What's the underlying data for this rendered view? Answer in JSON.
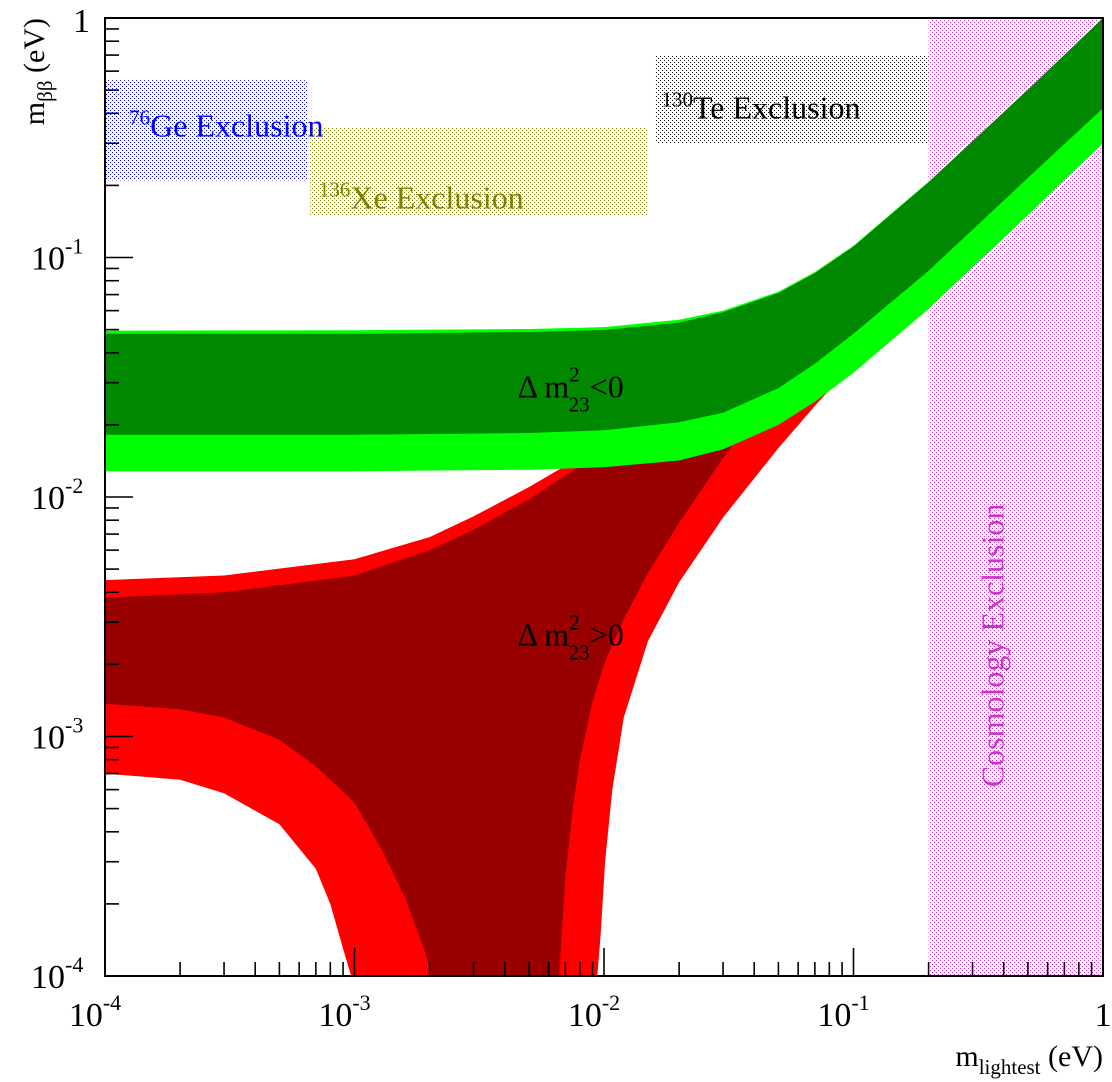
{
  "chart_data": {
    "type": "area",
    "title": "",
    "xlabel": {
      "main": "m",
      "sub": "lightest",
      "unit": " (eV)"
    },
    "ylabel": {
      "main": "m",
      "sub": "ββ",
      "unit": " (eV)"
    },
    "x_scale": "log",
    "y_scale": "log",
    "xlim": [
      0.0001,
      1
    ],
    "ylim": [
      0.0001,
      1
    ],
    "grid": false,
    "x_ticks": [
      {
        "value": 0.0001,
        "base": "10",
        "exp": "-4"
      },
      {
        "value": 0.001,
        "base": "10",
        "exp": "-3"
      },
      {
        "value": 0.01,
        "base": "10",
        "exp": "-2"
      },
      {
        "value": 0.1,
        "base": "10",
        "exp": "-1"
      },
      {
        "value": 1,
        "base": "1",
        "exp": ""
      }
    ],
    "y_ticks": [
      {
        "value": 0.0001,
        "base": "10",
        "exp": "-4"
      },
      {
        "value": 0.001,
        "base": "10",
        "exp": "-3"
      },
      {
        "value": 0.01,
        "base": "10",
        "exp": "-2"
      },
      {
        "value": 0.1,
        "base": "10",
        "exp": "-1"
      },
      {
        "value": 1,
        "base": "1",
        "exp": ""
      }
    ],
    "bands": [
      {
        "label": {
          "pre": "Δ m",
          "sup": "2",
          "sub": "23",
          "post": ">0"
        },
        "label_at": [
          0.0045,
          0.0024
        ],
        "outer_color": "#ff0000",
        "inner_color": "#990000",
        "outer_upper": [
          [
            0.0001,
            0.0045
          ],
          [
            0.0003,
            0.0047
          ],
          [
            0.001,
            0.0055
          ],
          [
            0.002,
            0.0068
          ],
          [
            0.003,
            0.0083
          ],
          [
            0.005,
            0.011
          ],
          [
            0.007,
            0.0135
          ],
          [
            0.01,
            0.017
          ],
          [
            0.015,
            0.021
          ],
          [
            0.02,
            0.025
          ],
          [
            0.03,
            0.034
          ],
          [
            0.05,
            0.053
          ],
          [
            0.07,
            0.072
          ],
          [
            0.1,
            0.1
          ],
          [
            0.2,
            0.2
          ],
          [
            0.5,
            0.5
          ],
          [
            1,
            1
          ]
        ],
        "outer_lower": [
          [
            0.0001,
            0.0007
          ],
          [
            0.0002,
            0.00066
          ],
          [
            0.0003,
            0.00058
          ],
          [
            0.0005,
            0.00043
          ],
          [
            0.0007,
            0.00028
          ],
          [
            0.0008,
            0.0002
          ],
          [
            0.0009,
            0.00013
          ],
          [
            0.00097,
            0.0001
          ],
          [
            0.0094,
            0.0001
          ],
          [
            0.0097,
            0.00015
          ],
          [
            0.0101,
            0.0003
          ],
          [
            0.0108,
            0.0006
          ],
          [
            0.012,
            0.0012
          ],
          [
            0.015,
            0.0025
          ],
          [
            0.02,
            0.0044
          ],
          [
            0.03,
            0.0082
          ],
          [
            0.05,
            0.016
          ],
          [
            0.07,
            0.024
          ],
          [
            0.1,
            0.036
          ],
          [
            0.2,
            0.074
          ],
          [
            0.5,
            0.185
          ],
          [
            1,
            0.37
          ]
        ],
        "inner_upper": [
          [
            0.0001,
            0.0038
          ],
          [
            0.0003,
            0.004
          ],
          [
            0.001,
            0.0047
          ],
          [
            0.002,
            0.006
          ],
          [
            0.003,
            0.0073
          ],
          [
            0.005,
            0.0098
          ],
          [
            0.007,
            0.0123
          ],
          [
            0.01,
            0.0157
          ],
          [
            0.015,
            0.0195
          ],
          [
            0.02,
            0.0218
          ],
          [
            0.022,
            0.0225
          ]
        ],
        "inner_lower": [
          [
            0.0001,
            0.00137
          ],
          [
            0.0002,
            0.0013
          ],
          [
            0.0003,
            0.0012
          ],
          [
            0.0005,
            0.00097
          ],
          [
            0.0007,
            0.00075
          ],
          [
            0.001,
            0.00053
          ],
          [
            0.0013,
            0.00033
          ],
          [
            0.0016,
            0.00021
          ],
          [
            0.0019,
            0.00013
          ],
          [
            0.00205,
            0.0001
          ],
          [
            0.0066,
            0.0001
          ],
          [
            0.0068,
            0.00016
          ],
          [
            0.007,
            0.00026
          ],
          [
            0.0075,
            0.0005
          ],
          [
            0.008,
            0.0008
          ],
          [
            0.009,
            0.0014
          ],
          [
            0.01,
            0.002
          ],
          [
            0.012,
            0.0031
          ],
          [
            0.015,
            0.0048
          ],
          [
            0.02,
            0.0078
          ],
          [
            0.025,
            0.011
          ],
          [
            0.03,
            0.0145
          ],
          [
            0.035,
            0.018
          ],
          [
            0.04,
            0.0215
          ],
          [
            0.042,
            0.0225
          ]
        ]
      },
      {
        "label": {
          "pre": "Δ m",
          "sup": "2",
          "sub": "23",
          "post": "<0"
        },
        "label_at": [
          0.0045,
          0.026
        ],
        "outer_color": "#00ff00",
        "inner_color": "#008800",
        "outer_upper": [
          [
            0.0001,
            0.0495
          ],
          [
            0.001,
            0.0497
          ],
          [
            0.005,
            0.0503
          ],
          [
            0.01,
            0.0512
          ],
          [
            0.02,
            0.055
          ],
          [
            0.03,
            0.06
          ],
          [
            0.05,
            0.072
          ],
          [
            0.07,
            0.087
          ],
          [
            0.1,
            0.112
          ],
          [
            0.2,
            0.207
          ],
          [
            0.5,
            0.503
          ],
          [
            1,
            1
          ]
        ],
        "outer_lower": [
          [
            0.0001,
            0.0128
          ],
          [
            0.001,
            0.0128
          ],
          [
            0.005,
            0.013
          ],
          [
            0.01,
            0.0133
          ],
          [
            0.02,
            0.0142
          ],
          [
            0.03,
            0.0158
          ],
          [
            0.05,
            0.02
          ],
          [
            0.07,
            0.025
          ],
          [
            0.1,
            0.033
          ],
          [
            0.2,
            0.061
          ],
          [
            0.5,
            0.15
          ],
          [
            1,
            0.3
          ]
        ],
        "inner_upper": [
          [
            0.0001,
            0.048
          ],
          [
            0.001,
            0.048
          ],
          [
            0.005,
            0.0488
          ],
          [
            0.01,
            0.0498
          ],
          [
            0.02,
            0.0535
          ],
          [
            0.03,
            0.059
          ],
          [
            0.05,
            0.071
          ],
          [
            0.07,
            0.086
          ],
          [
            0.1,
            0.111
          ],
          [
            0.2,
            0.206
          ],
          [
            0.5,
            0.502
          ],
          [
            1,
            1
          ]
        ],
        "inner_lower": [
          [
            0.0001,
            0.0182
          ],
          [
            0.001,
            0.0182
          ],
          [
            0.005,
            0.0185
          ],
          [
            0.01,
            0.019
          ],
          [
            0.02,
            0.0205
          ],
          [
            0.03,
            0.0225
          ],
          [
            0.05,
            0.0285
          ],
          [
            0.07,
            0.036
          ],
          [
            0.1,
            0.048
          ],
          [
            0.2,
            0.088
          ],
          [
            0.5,
            0.215
          ],
          [
            1,
            0.42
          ]
        ]
      }
    ],
    "exclusions": [
      {
        "sup": "76",
        "text": "Ge Exclusion",
        "color": "#0000ff",
        "x": [
          0.0001,
          0.00065
        ],
        "y": [
          0.21,
          0.55
        ],
        "label_at": [
          0.000125,
          0.32
        ]
      },
      {
        "sup": "136",
        "text": "Xe Exclusion",
        "color": "#808000",
        "x": [
          0.00066,
          0.015
        ],
        "y": [
          0.15,
          0.35
        ],
        "label_at": [
          0.00072,
          0.16
        ]
      },
      {
        "sup": "130",
        "text": "Te Exclusion",
        "color": "#000000",
        "x": [
          0.016,
          0.2
        ],
        "y": [
          0.3,
          0.7
        ],
        "label_at": [
          0.017,
          0.38
        ]
      },
      {
        "sup": "",
        "text": "Cosmology Exclusion",
        "color": "#cc33cc",
        "x": [
          0.2,
          1
        ],
        "y": [
          0.0001,
          1
        ],
        "vertical": true,
        "label_at": [
          0.4,
          0.0024
        ]
      }
    ]
  }
}
